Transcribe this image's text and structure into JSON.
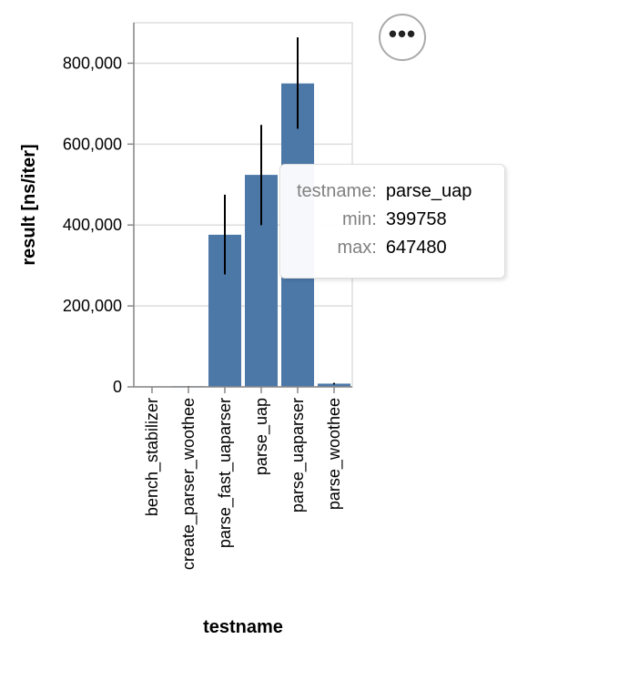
{
  "chart_data": {
    "type": "bar",
    "xlabel": "testname",
    "ylabel": "result [ns/iter]",
    "ylim": [
      0,
      900000
    ],
    "y_ticks": [
      0,
      200000,
      400000,
      600000,
      800000
    ],
    "y_tick_labels": [
      "0",
      "200,000",
      "400,000",
      "600,000",
      "800,000"
    ],
    "grid": true,
    "bar_color": "#4c78a8",
    "error_bar_color": "#000000",
    "categories": [
      "bench_stabilizer",
      "create_parser_woothee",
      "parse_fast_uaparser",
      "parse_uap",
      "parse_uaparser",
      "parse_woothee"
    ],
    "values": [
      300,
      1500,
      376000,
      524000,
      750000,
      8000
    ],
    "error_min": [
      200,
      1000,
      278000,
      399758,
      638000,
      6000
    ],
    "error_max": [
      400,
      2000,
      475000,
      647480,
      864000,
      10000
    ]
  },
  "tooltip": {
    "rows": [
      {
        "key": "testname:",
        "value": "parse_uap"
      },
      {
        "key": "min:",
        "value": "399758"
      },
      {
        "key": "max:",
        "value": "647480"
      }
    ]
  },
  "menu": {
    "icon": "more-horizontal-icon",
    "glyph": "•••"
  }
}
